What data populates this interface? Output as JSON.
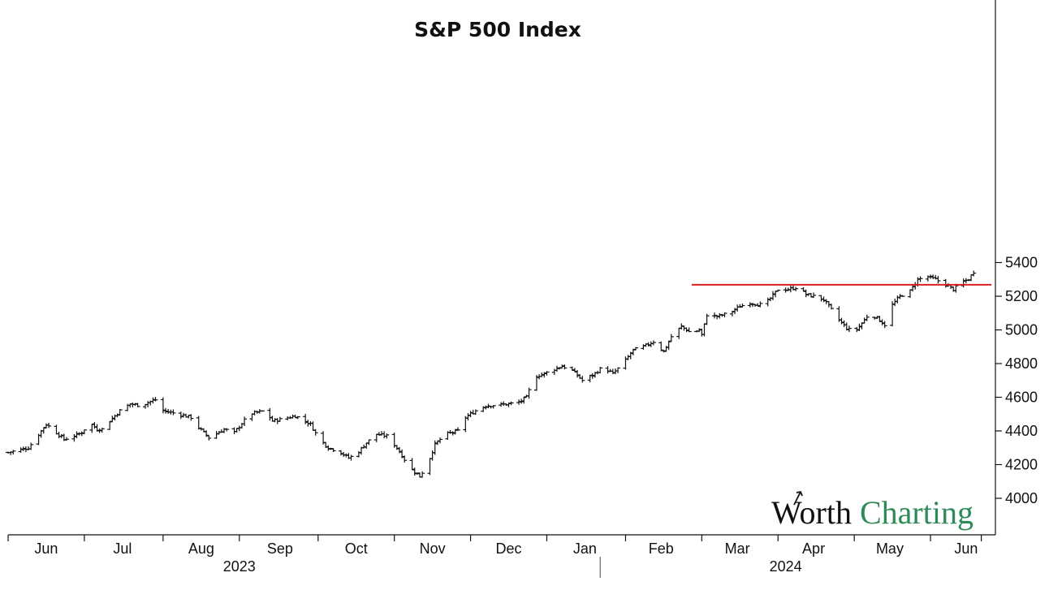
{
  "chart_data": {
    "type": "ohlc",
    "title": "S&P 500 Index",
    "xlabel": "",
    "ylabel": "",
    "ylim": [
      3900,
      5450
    ],
    "y_ticks": [
      4000,
      4200,
      4400,
      4600,
      4800,
      5000,
      5200,
      5400
    ],
    "y_axis_position": "right",
    "x_range": [
      "2023-05-24",
      "2024-06-13"
    ],
    "month_ticks": [
      "2023-05-24",
      "2023-06-23",
      "2023-07-24",
      "2023-08-23",
      "2023-09-23",
      "2023-10-23",
      "2023-11-22",
      "2023-12-22",
      "2024-01-22",
      "2024-02-21",
      "2024-03-22",
      "2024-04-21",
      "2024-05-21",
      "2024-06-10"
    ],
    "month_labels": [
      {
        "label": "Jun",
        "date": "2023-06-08"
      },
      {
        "label": "Jul",
        "date": "2023-07-08"
      },
      {
        "label": "Aug",
        "date": "2023-08-08"
      },
      {
        "label": "Sep",
        "date": "2023-09-08"
      },
      {
        "label": "Oct",
        "date": "2023-10-08"
      },
      {
        "label": "Nov",
        "date": "2023-11-07"
      },
      {
        "label": "Dec",
        "date": "2023-12-07"
      },
      {
        "label": "Jan",
        "date": "2024-01-06"
      },
      {
        "label": "Feb",
        "date": "2024-02-05"
      },
      {
        "label": "Mar",
        "date": "2024-03-06"
      },
      {
        "label": "Apr",
        "date": "2024-04-05"
      },
      {
        "label": "May",
        "date": "2024-05-05"
      },
      {
        "label": "Jun",
        "date": "2024-06-04"
      }
    ],
    "year_labels": [
      {
        "label": "2023",
        "date": "2023-08-23"
      },
      {
        "label": "2024",
        "date": "2024-03-25"
      }
    ],
    "year_divider": "2024-01-12",
    "resistance_line": {
      "value": 5268,
      "from": "2024-02-17",
      "to": "2024-06-14",
      "color": "#d62020"
    },
    "bar_color": "#111111",
    "grid": false,
    "anchors": [
      [
        "2023-05-24",
        4272
      ],
      [
        "2023-06-01",
        4300
      ],
      [
        "2023-06-04",
        4360
      ],
      [
        "2023-06-08",
        4440
      ],
      [
        "2023-06-12",
        4390
      ],
      [
        "2023-06-15",
        4350
      ],
      [
        "2023-06-19",
        4370
      ],
      [
        "2023-06-22",
        4390
      ],
      [
        "2023-06-25",
        4450
      ],
      [
        "2023-06-28",
        4410
      ],
      [
        "2023-07-01",
        4410
      ],
      [
        "2023-07-03",
        4460
      ],
      [
        "2023-07-07",
        4520
      ],
      [
        "2023-07-11",
        4560
      ],
      [
        "2023-07-15",
        4550
      ],
      [
        "2023-07-19",
        4575
      ],
      [
        "2023-07-22",
        4590
      ],
      [
        "2023-07-24",
        4520
      ],
      [
        "2023-07-30",
        4500
      ],
      [
        "2023-08-04",
        4480
      ],
      [
        "2023-08-07",
        4420
      ],
      [
        "2023-08-11",
        4360
      ],
      [
        "2023-08-17",
        4410
      ],
      [
        "2023-08-21",
        4390
      ],
      [
        "2023-08-27",
        4500
      ],
      [
        "2023-09-02",
        4520
      ],
      [
        "2023-09-05",
        4460
      ],
      [
        "2023-09-09",
        4470
      ],
      [
        "2023-09-14",
        4490
      ],
      [
        "2023-09-20",
        4440
      ],
      [
        "2023-09-23",
        4360
      ],
      [
        "2023-09-27",
        4300
      ],
      [
        "2023-10-01",
        4280
      ],
      [
        "2023-10-05",
        4240
      ],
      [
        "2023-10-08",
        4260
      ],
      [
        "2023-10-12",
        4330
      ],
      [
        "2023-10-16",
        4380
      ],
      [
        "2023-10-20",
        4370
      ],
      [
        "2023-10-24",
        4300
      ],
      [
        "2023-10-27",
        4230
      ],
      [
        "2023-10-30",
        4170
      ],
      [
        "2023-11-02",
        4130
      ],
      [
        "2023-11-05",
        4200
      ],
      [
        "2023-11-08",
        4320
      ],
      [
        "2023-11-12",
        4380
      ],
      [
        "2023-11-17",
        4400
      ],
      [
        "2023-11-20",
        4480
      ],
      [
        "2023-11-24",
        4520
      ],
      [
        "2023-11-28",
        4550
      ],
      [
        "2023-12-03",
        4555
      ],
      [
        "2023-12-07",
        4560
      ],
      [
        "2023-12-11",
        4570
      ],
      [
        "2023-12-14",
        4600
      ],
      [
        "2023-12-17",
        4720
      ],
      [
        "2023-12-21",
        4740
      ],
      [
        "2023-12-24",
        4760
      ],
      [
        "2023-12-28",
        4785
      ],
      [
        "2024-01-01",
        4760
      ],
      [
        "2024-01-05",
        4700
      ],
      [
        "2024-01-09",
        4730
      ],
      [
        "2024-01-13",
        4780
      ],
      [
        "2024-01-17",
        4740
      ],
      [
        "2024-01-21",
        4800
      ],
      [
        "2024-01-25",
        4880
      ],
      [
        "2024-01-29",
        4900
      ],
      [
        "2024-02-02",
        4930
      ],
      [
        "2024-02-06",
        4870
      ],
      [
        "2024-02-09",
        4960
      ],
      [
        "2024-02-13",
        5020
      ],
      [
        "2024-02-17",
        4980
      ],
      [
        "2024-02-20",
        5000
      ],
      [
        "2024-02-21",
        4970
      ],
      [
        "2024-02-23",
        5090
      ],
      [
        "2024-02-27",
        5080
      ],
      [
        "2024-03-03",
        5100
      ],
      [
        "2024-03-07",
        5140
      ],
      [
        "2024-03-11",
        5160
      ],
      [
        "2024-03-15",
        5150
      ],
      [
        "2024-03-18",
        5170
      ],
      [
        "2024-03-22",
        5240
      ],
      [
        "2024-03-26",
        5240
      ],
      [
        "2024-03-30",
        5255
      ],
      [
        "2024-04-02",
        5210
      ],
      [
        "2024-04-05",
        5200
      ],
      [
        "2024-04-09",
        5180
      ],
      [
        "2024-04-12",
        5120
      ],
      [
        "2024-04-15",
        5060
      ],
      [
        "2024-04-18",
        5010
      ],
      [
        "2024-04-21",
        4985
      ],
      [
        "2024-04-24",
        5040
      ],
      [
        "2024-04-27",
        5100
      ],
      [
        "2024-04-30",
        5070
      ],
      [
        "2024-05-03",
        5030
      ],
      [
        "2024-05-06",
        5150
      ],
      [
        "2024-05-09",
        5200
      ],
      [
        "2024-05-13",
        5230
      ],
      [
        "2024-05-16",
        5300
      ],
      [
        "2024-05-20",
        5315
      ],
      [
        "2024-05-23",
        5300
      ],
      [
        "2024-05-27",
        5270
      ],
      [
        "2024-05-30",
        5240
      ],
      [
        "2024-06-02",
        5280
      ],
      [
        "2024-06-05",
        5300
      ],
      [
        "2024-06-07",
        5345
      ]
    ]
  },
  "logo": {
    "part1": "Worth",
    "part2": "Charting"
  }
}
